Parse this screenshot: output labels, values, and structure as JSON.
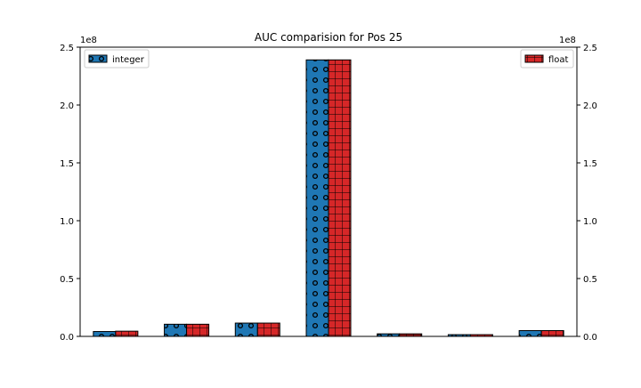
{
  "chart_data": {
    "type": "bar",
    "title": "AUC comparision for Pos 25",
    "categories": [
      "",
      "",
      "",
      "",
      "",
      "",
      ""
    ],
    "series": [
      {
        "name": "integer",
        "color": "#1f77b4",
        "hatch": "circles",
        "axis": "left",
        "values": [
          4200000,
          10500000,
          11500000,
          239000000,
          2200000,
          1500000,
          5000000
        ]
      },
      {
        "name": "float",
        "color": "#d62728",
        "hatch": "grid",
        "axis": "right",
        "values": [
          4500000,
          10500000,
          11500000,
          239000000,
          2200000,
          1500000,
          5000000
        ]
      }
    ],
    "ylim_left": [
      0,
      250000000
    ],
    "ylim_right": [
      0,
      250000000
    ],
    "yticks": [
      "0.0",
      "0.5",
      "1.0",
      "1.5",
      "2.0",
      "2.5"
    ],
    "ytick_values": [
      0,
      50000000,
      100000000,
      150000000,
      200000000,
      250000000
    ],
    "offset_label_left": "1e8",
    "offset_label_right": "1e8",
    "legend_left_position": "upper left",
    "legend_right_position": "upper right",
    "grid": false,
    "xlabel": "",
    "ylabel": ""
  }
}
